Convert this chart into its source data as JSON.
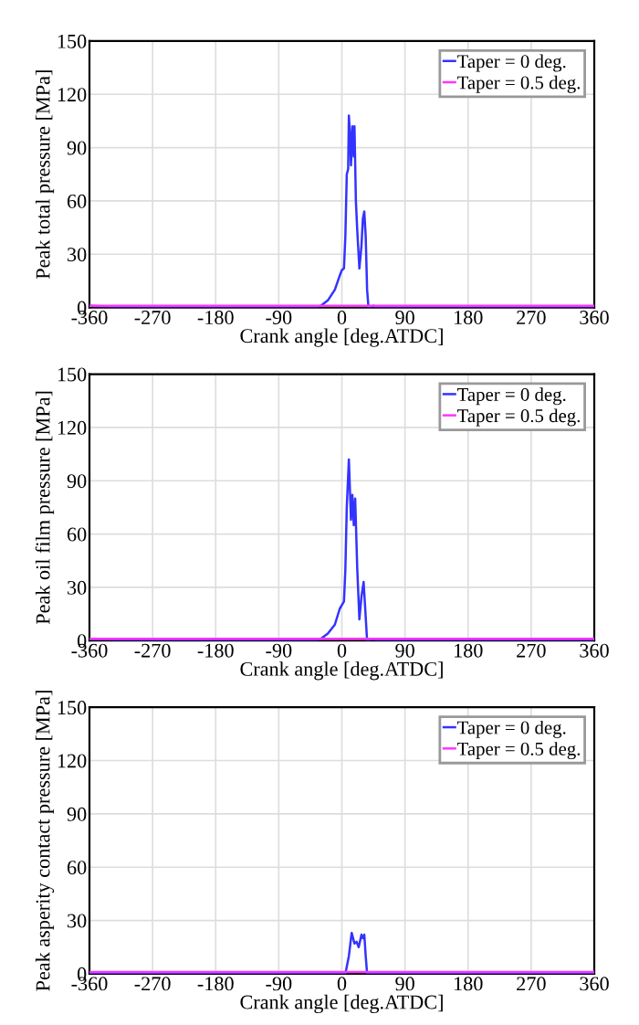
{
  "chart_data": [
    {
      "type": "line",
      "xlabel": "Crank angle [deg.ATDC]",
      "ylabel": "Peak total pressure [MPa]",
      "xlim": [
        -360,
        360
      ],
      "xticks": [
        -360,
        -270,
        -180,
        -90,
        0,
        90,
        180,
        270,
        360
      ],
      "ylim": [
        0,
        150
      ],
      "yticks": [
        0,
        30,
        60,
        90,
        120,
        150
      ],
      "grid": true,
      "legend": "top right",
      "line_style": "solid",
      "series": [
        {
          "name": "Taper = 0 deg.",
          "color": "#3333ff",
          "x": [
            -360,
            -300,
            -40,
            -30,
            -20,
            -10,
            -3,
            0,
            3,
            5,
            7,
            9,
            10,
            12,
            13,
            14,
            15,
            17,
            18,
            20,
            22,
            25,
            28,
            30,
            32,
            34,
            36,
            38,
            45,
            50,
            360
          ],
          "values": [
            1,
            0,
            0,
            1,
            4,
            10,
            18,
            21,
            22,
            40,
            75,
            78,
            108,
            95,
            80,
            90,
            102,
            85,
            102,
            60,
            43,
            22,
            35,
            50,
            54,
            40,
            10,
            0,
            1,
            0,
            0
          ]
        },
        {
          "name": "Taper = 0.5 deg.",
          "color": "#ff33ff",
          "x": [
            -360,
            0,
            360
          ],
          "values": [
            1,
            1,
            1
          ]
        }
      ]
    },
    {
      "type": "line",
      "xlabel": "Crank angle [deg.ATDC]",
      "ylabel": "Peak oil film pressure [MPa]",
      "xlim": [
        -360,
        360
      ],
      "xticks": [
        -360,
        -270,
        -180,
        -90,
        0,
        90,
        180,
        270,
        360
      ],
      "ylim": [
        0,
        150
      ],
      "yticks": [
        0,
        30,
        60,
        90,
        120,
        150
      ],
      "grid": true,
      "legend": "top right",
      "line_style": "solid",
      "series": [
        {
          "name": "Taper = 0 deg.",
          "color": "#3333ff",
          "x": [
            -360,
            -300,
            -40,
            -30,
            -20,
            -10,
            -3,
            0,
            3,
            5,
            7,
            10,
            13,
            15,
            17,
            19,
            22,
            25,
            28,
            31,
            33,
            36,
            45,
            50,
            360
          ],
          "values": [
            1,
            0,
            0,
            1,
            4,
            9,
            18,
            20,
            22,
            40,
            75,
            102,
            68,
            82,
            65,
            80,
            40,
            12,
            25,
            33,
            20,
            0,
            1,
            0,
            0
          ]
        },
        {
          "name": "Taper = 0.5 deg.",
          "color": "#ff33ff",
          "x": [
            -360,
            0,
            360
          ],
          "values": [
            1,
            1,
            1
          ]
        }
      ]
    },
    {
      "type": "line",
      "xlabel": "Crank angle [deg.ATDC]",
      "ylabel": "Peak asperity contact pressure [MPa]",
      "xlim": [
        -360,
        360
      ],
      "xticks": [
        -360,
        -270,
        -180,
        -90,
        0,
        90,
        180,
        270,
        360
      ],
      "ylim": [
        0,
        150
      ],
      "yticks": [
        0,
        30,
        60,
        90,
        120,
        150
      ],
      "grid": true,
      "legend": "top right",
      "line_style": "solid",
      "series": [
        {
          "name": "Taper = 0 deg.",
          "color": "#3333ff",
          "x": [
            -360,
            5,
            10,
            14,
            18,
            21,
            24,
            28,
            30,
            32,
            34,
            36,
            360
          ],
          "values": [
            0,
            0,
            10,
            23,
            17,
            18,
            15,
            22,
            20,
            22,
            10,
            0,
            0
          ]
        },
        {
          "name": "Taper = 0.5 deg.",
          "color": "#ff33ff",
          "x": [
            -360,
            0,
            360
          ],
          "values": [
            1,
            1,
            1
          ]
        }
      ]
    }
  ]
}
